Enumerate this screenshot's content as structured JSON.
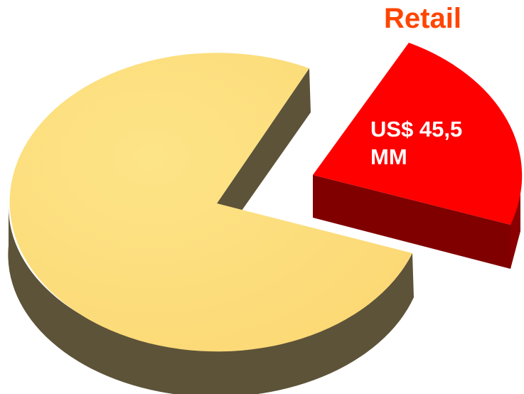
{
  "chart_data": {
    "type": "pie",
    "style": "3d-exploded",
    "legend": "none",
    "slices": [
      {
        "label": "",
        "value_label": "",
        "share": 0.78,
        "color": "#fde07a",
        "side_color": "#5d5339"
      },
      {
        "label": "Retail",
        "value_label": "US$ 45,5\nMM",
        "share": 0.22,
        "color": "#ff0000",
        "side_color": "#800000",
        "exploded": true
      }
    ]
  },
  "colors": {
    "retail_title": "#ff4500",
    "retail_value_text": "#ffffff"
  }
}
